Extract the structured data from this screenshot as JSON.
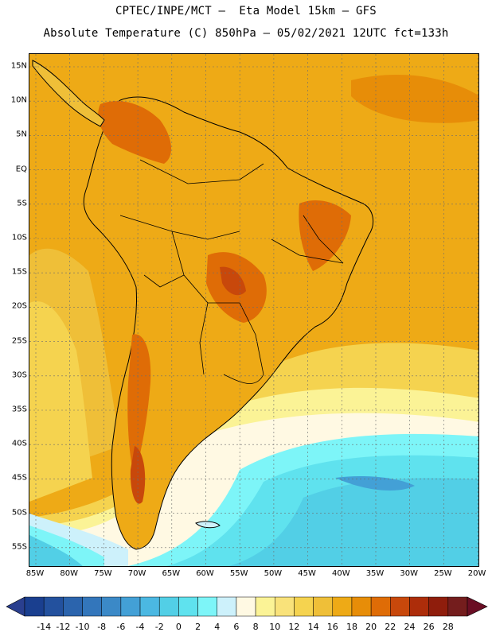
{
  "header": {
    "line1": "CPTEC/INPE/MCT –  Eta Model 15km – GFS",
    "line2": "Absolute Temperature (C) 850hPa – 05/02/2021 12UTC fct=133h"
  },
  "map": {
    "lat_labels": [
      "15N",
      "10N",
      "5N",
      "EQ",
      "5S",
      "10S",
      "15S",
      "20S",
      "25S",
      "30S",
      "35S",
      "40S",
      "45S",
      "50S",
      "55S"
    ],
    "lon_labels": [
      "85W",
      "80W",
      "75W",
      "70W",
      "65W",
      "60W",
      "55W",
      "50W",
      "45W",
      "40W",
      "35W",
      "30W",
      "25W",
      "20W"
    ]
  },
  "legend": {
    "labels": [
      "-14",
      "-12",
      "-10",
      "-8",
      "-6",
      "-4",
      "-2",
      "0",
      "2",
      "4",
      "6",
      "8",
      "10",
      "12",
      "14",
      "16",
      "18",
      "20",
      "22",
      "24",
      "26",
      "28"
    ],
    "colors": [
      "#1a3f8f",
      "#23519e",
      "#2b64ad",
      "#3376bb",
      "#3b89c7",
      "#43a0d6",
      "#4bb8e2",
      "#52cfe6",
      "#5fe2ee",
      "#7df5f8",
      "#cdf1fb",
      "#fff9e3",
      "#fbf396",
      "#f9e27a",
      "#f5d34f",
      "#efbf38",
      "#eeaa16",
      "#e78d08",
      "#df6c06",
      "#c8480b",
      "#ad2d0a",
      "#8f1d0c",
      "#741d1d"
    ],
    "left_arrow_color": "#2a3f8f",
    "right_arrow_color": "#6a0e24"
  }
}
